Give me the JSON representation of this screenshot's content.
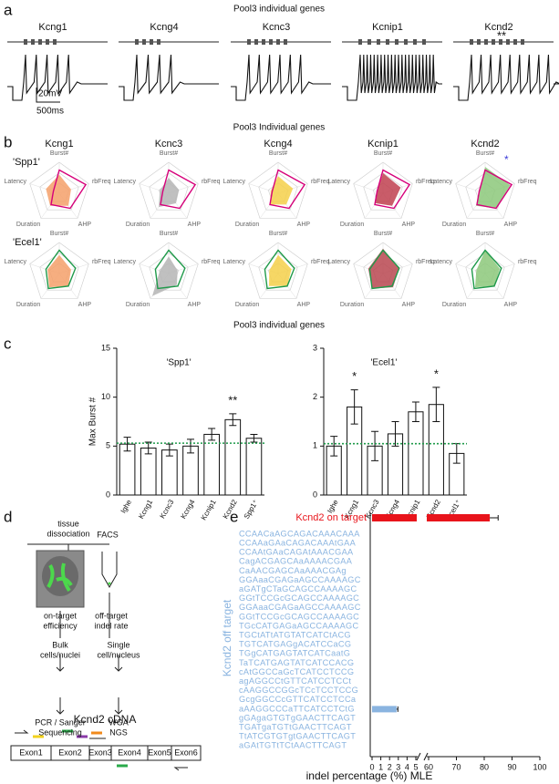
{
  "panel_labels": [
    "a",
    "b",
    "c",
    "d",
    "e"
  ],
  "traces": {
    "title": "Pool3 individual genes",
    "genes": [
      "Kcng1",
      "Kcng4",
      "Kcnc3",
      "Kcnip1",
      "Kcnd2"
    ],
    "annotation": "**",
    "scale_v": "20mV",
    "scale_t": "500ms"
  },
  "radar": {
    "title": "Pool3 Individual genes",
    "genes": [
      "Kcng1",
      "Kcnc3",
      "Kcng4",
      "Kcnip1",
      "Kcnd2"
    ],
    "axes": [
      "Burst#",
      "rbFreq",
      "AHP",
      "Duration",
      "Latency"
    ],
    "annotation": "*",
    "rows": [
      {
        "label": "'Spp1'",
        "outline_color": "#d6007a",
        "outline": [
          0.75,
          0.9,
          0.6,
          0.45,
          0.2
        ],
        "series": [
          {
            "color": "#f4a06a",
            "values": [
              0.6,
              0.4,
              0.5,
              0.5,
              0.45
            ]
          },
          {
            "color": "#b5b5b5",
            "values": [
              0.5,
              0.35,
              0.4,
              0.55,
              0.3
            ]
          },
          {
            "color": "#f5d04a",
            "values": [
              0.55,
              0.5,
              0.45,
              0.45,
              0.25
            ]
          },
          {
            "color": "#c0404f",
            "values": [
              0.65,
              0.6,
              0.5,
              0.4,
              0.2
            ]
          },
          {
            "color": "#8cc87a",
            "values": [
              0.85,
              0.85,
              0.6,
              0.5,
              0.2
            ]
          }
        ]
      },
      {
        "label": "'Ecel1'",
        "outline_color": "#1f9a4a",
        "outline": [
          0.75,
          0.55,
          0.5,
          0.6,
          0.45
        ],
        "series": [
          {
            "color": "#f4a06a",
            "values": [
              0.6,
              0.4,
              0.5,
              0.55,
              0.4
            ]
          },
          {
            "color": "#b5b5b5",
            "values": [
              0.55,
              0.3,
              0.45,
              0.9,
              0.3
            ]
          },
          {
            "color": "#f5d04a",
            "values": [
              0.6,
              0.45,
              0.5,
              0.5,
              0.3
            ]
          },
          {
            "color": "#b84650",
            "values": [
              0.8,
              0.55,
              0.55,
              0.6,
              0.5
            ]
          },
          {
            "color": "#8cc87a",
            "values": [
              0.75,
              0.5,
              0.5,
              0.55,
              0.3
            ]
          }
        ]
      }
    ]
  },
  "panel_c_title": "Pool3 individual genes",
  "chart_data": [
    {
      "type": "bar",
      "subtitle": "'Spp1'",
      "y_label": "Max Burst #",
      "categories": [
        "Ighe",
        "Kcng1",
        "Kcnc3",
        "Kcng4",
        "Kcnip1",
        "Kcnd2",
        "Spp1⁺"
      ],
      "values": [
        5.2,
        4.8,
        4.6,
        5.0,
        6.2,
        7.7,
        5.8
      ],
      "errors": [
        0.7,
        0.6,
        0.6,
        0.7,
        0.6,
        0.6,
        0.4
      ],
      "reference": 5.3,
      "reference_color": "#1f9a4a",
      "ylim": [
        0,
        15
      ],
      "yticks": [
        0,
        5,
        10,
        15
      ],
      "annotations": [
        {
          "text": "**",
          "category": "Kcnd2"
        }
      ]
    },
    {
      "type": "bar",
      "subtitle": "'Ecel1'",
      "categories": [
        "Ighe",
        "Kcng1",
        "Kcnc3",
        "Kcng4",
        "Kcnip1",
        "Kcnd2",
        "Ecel1⁺"
      ],
      "values": [
        1.0,
        1.8,
        1.0,
        1.25,
        1.7,
        1.85,
        0.85
      ],
      "errors": [
        0.2,
        0.35,
        0.3,
        0.25,
        0.2,
        0.35,
        0.2
      ],
      "reference": 1.05,
      "reference_color": "#1f9a4a",
      "ylim": [
        0,
        3
      ],
      "yticks": [
        0,
        1,
        2,
        3
      ],
      "annotations": [
        {
          "text": "*",
          "category": "Kcng1"
        },
        {
          "text": "*",
          "category": "Kcnd2"
        }
      ]
    },
    {
      "type": "hbar",
      "y_label": "Kcnd2 off target",
      "x_label": "indel percentage (%) MLE",
      "on_target": {
        "label": "Kcnd2 on target",
        "value": 82,
        "error": 3,
        "color": "#e8141b"
      },
      "color": "#8ab4e0",
      "categories": [
        "CCAACaAGCAGACAAACAAA",
        "CCAAaGAaCAGACAAAtGAA",
        "CCAAtGAaCAGAtAAACGAA",
        "CagACGAGCAaAAAACGAA",
        "CaAACGAGCAaAAACGAg",
        "GGAaaCGAGaAGCCAAAAGC",
        "aGATgCTaGCAGCCAAAAGC",
        "GGtTCCGcGCAGCCAAAAGC",
        "GGAaaCGAGaAGCCAAAAGC",
        "GGtTCCGcGCAGCCAAAAGC",
        "TGcCATGAGaAGCCAAAAGC",
        "TGCtATtATGTATCATCtACG",
        "TGTCATGAGgACATCCaCG",
        "TGgCATGAGTATCATCaatG",
        "TaTCATGAGTATCATCCACG",
        "cAtGGCCaGcTCATCCTCCG",
        "agAGGCCtGTTCATCCTCCt",
        "cAAGGCCGGcTCcTCCTCCG",
        "GcgGGCCcGTTCATCCTCCa",
        "aAAGGCCCaTTCATCCTCtG",
        "gGAgaGTGTgGAACTTCAGT",
        "TGATgaTGTtGAACTTCAGT",
        "TtATCGTGTgtGAACTTCAGT",
        "aGAtTGTtTCtAACTTCAGT"
      ],
      "values": [
        0,
        0,
        0,
        0,
        0,
        0,
        0,
        0,
        0,
        0,
        0,
        0,
        0,
        0,
        0,
        0,
        0,
        0,
        0,
        2.8,
        0,
        0,
        0,
        0
      ],
      "errors": [
        0,
        0,
        0,
        0,
        0,
        0,
        0,
        0,
        0,
        0,
        0,
        0,
        0,
        0,
        0,
        0,
        0,
        0,
        0,
        0.15,
        0,
        0,
        0,
        0
      ],
      "xlim": [
        0,
        100
      ],
      "xbreak": [
        5,
        60
      ],
      "xticks": [
        0,
        1,
        2,
        3,
        4,
        5,
        60,
        70,
        80,
        90,
        100
      ]
    }
  ],
  "diagram": {
    "tissue": [
      "tissue",
      "dissociation"
    ],
    "facs": "FACS",
    "on_target": [
      "on-target",
      "efficiency"
    ],
    "off_target": [
      "off-target",
      "indel rate"
    ],
    "bulk": [
      "Bulk",
      "cells/nuclei"
    ],
    "single": [
      "Single",
      "cell/nucleus"
    ],
    "pcr": [
      "PCR / Sanger",
      "Sequencing"
    ],
    "wga": [
      "WGA",
      "NGS"
    ],
    "cdna": "Kcnd2  cDNA",
    "exons": [
      "Exon1",
      "Exon2",
      "Exon3",
      "Exon4",
      "Exon5",
      "Exon6"
    ]
  }
}
